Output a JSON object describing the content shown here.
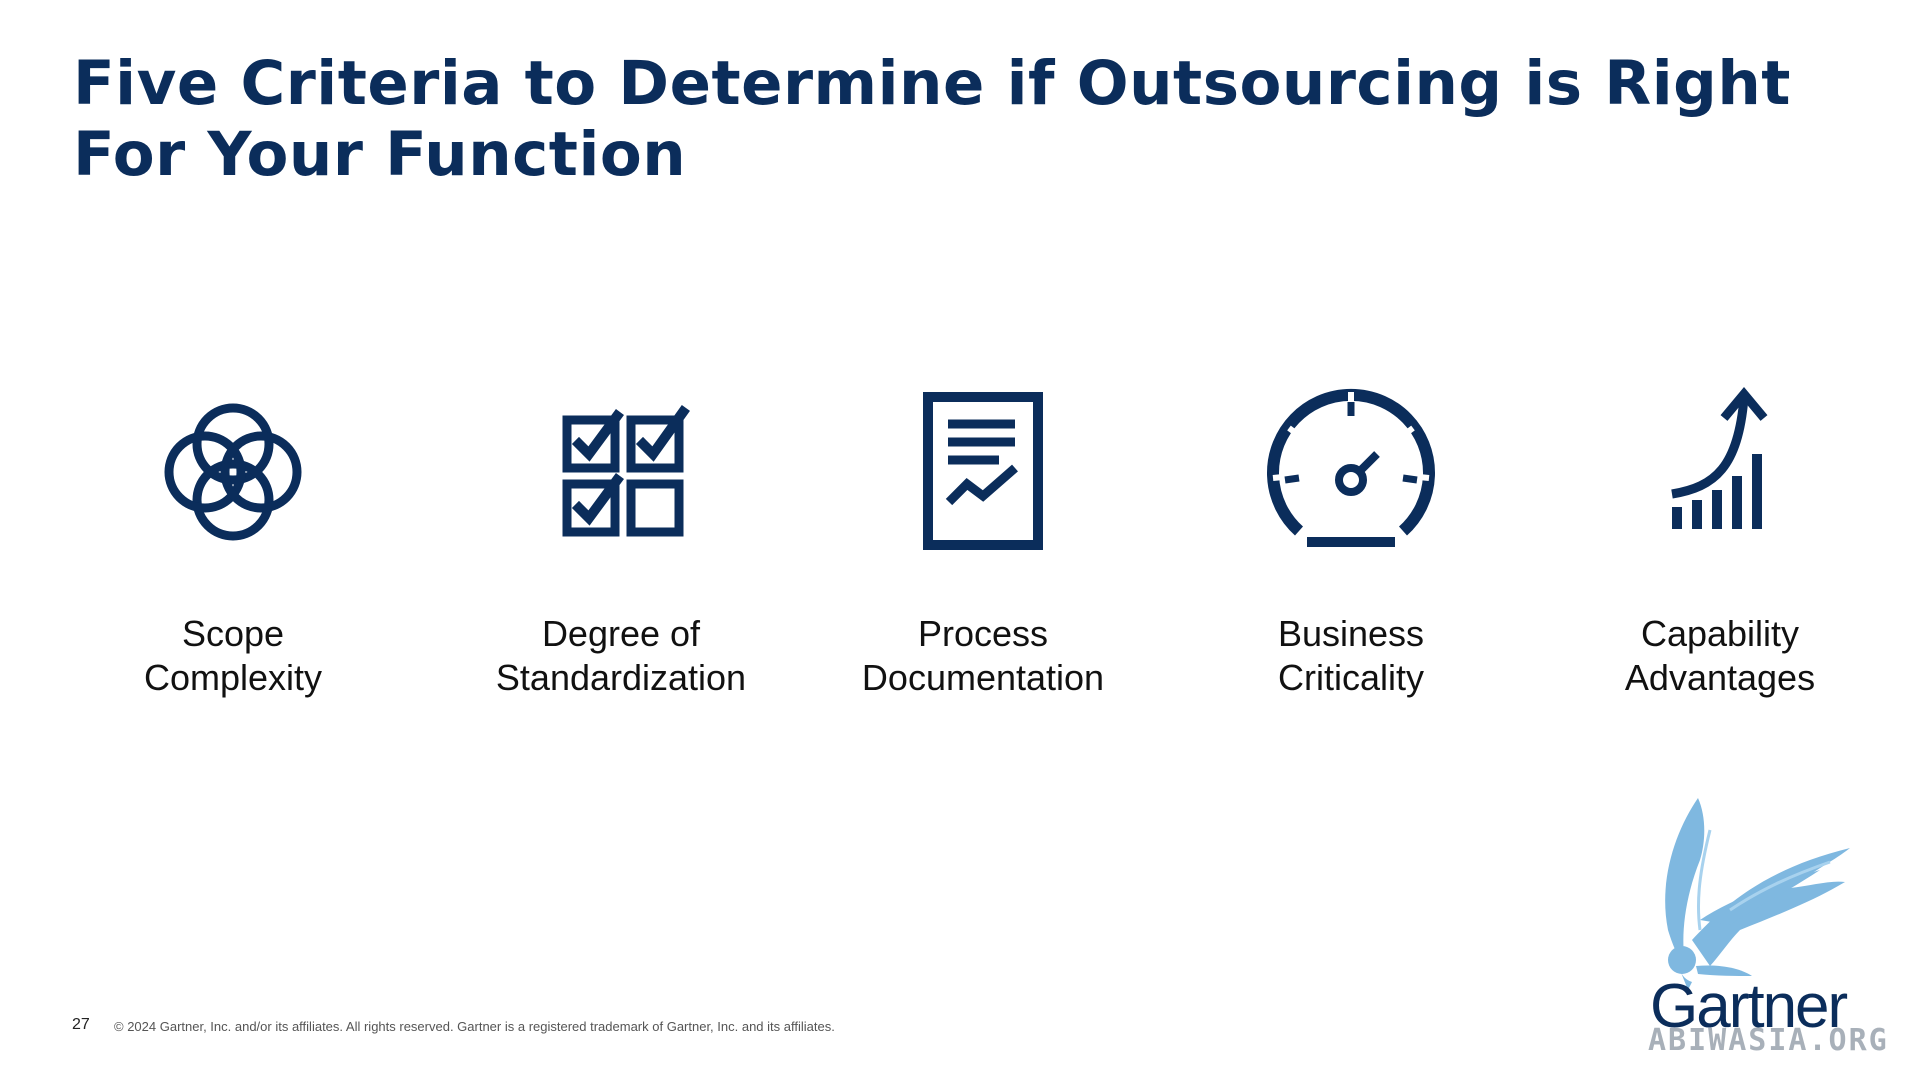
{
  "slide": {
    "title_line1": "Five Criteria to Determine if Outsourcing is Right",
    "title_line2": "For Your Function",
    "accent_color": "#0b2d5b"
  },
  "criteria": [
    {
      "icon": "interlocking-circles-icon",
      "line1": "Scope",
      "line2": "Complexity"
    },
    {
      "icon": "checklist-grid-icon",
      "line1": "Degree of",
      "line2": "Standardization"
    },
    {
      "icon": "document-chart-icon",
      "line1": "Process",
      "line2": "Documentation"
    },
    {
      "icon": "speedometer-icon",
      "line1": "Business",
      "line2": "Criticality"
    },
    {
      "icon": "growth-chart-icon",
      "line1": "Capability",
      "line2": "Advantages"
    }
  ],
  "footer": {
    "page_number": "27",
    "copyright": "© 2024 Gartner, Inc. and/or its affiliates. All rights reserved. Gartner is a registered trademark of Gartner, Inc. and its affiliates."
  },
  "logo": {
    "wordmark": "Gartner",
    "watermark": "ABIWASIA.ORG",
    "wing_color": "#7fb8e0"
  }
}
